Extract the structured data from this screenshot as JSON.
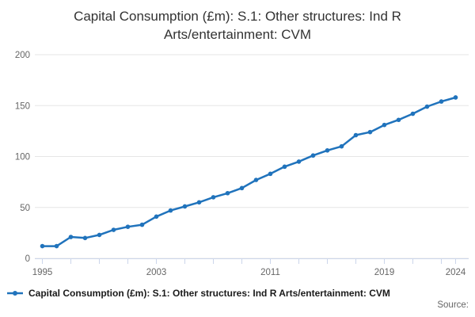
{
  "title": {
    "line1": "Capital Consumption (£m): S.1: Other structures: Ind R",
    "line2": "Arts/entertainment: CVM"
  },
  "legend": {
    "label": "Capital Consumption (£m): S.1: Other structures: Ind R Arts/entertainment: CVM"
  },
  "footer": {
    "source_label": "Source:"
  },
  "colors": {
    "series": "#2073bc",
    "grid": "#e6e6e6",
    "axis": "#ccd6eb",
    "tick_label": "#666666"
  },
  "chart_data": {
    "type": "line",
    "title": "Capital Consumption (£m): S.1: Other structures: Ind R Arts/entertainment: CVM",
    "series_name": "Capital Consumption (£m): S.1: Other structures: Ind R Arts/entertainment: CVM",
    "x": [
      1995,
      1996,
      1997,
      1998,
      1999,
      2000,
      2001,
      2002,
      2003,
      2004,
      2005,
      2006,
      2007,
      2008,
      2009,
      2010,
      2011,
      2012,
      2013,
      2014,
      2015,
      2016,
      2017,
      2018,
      2019,
      2020,
      2021,
      2022,
      2023,
      2024
    ],
    "values": [
      12,
      12,
      21,
      20,
      23,
      28,
      31,
      33,
      41,
      47,
      51,
      55,
      60,
      64,
      69,
      77,
      83,
      90,
      95,
      101,
      106,
      110,
      121,
      124,
      131,
      136,
      142,
      149,
      154,
      158
    ],
    "xlabel": "",
    "ylabel": "",
    "ylim": [
      0,
      200
    ],
    "yticks": [
      0,
      50,
      100,
      150,
      200
    ],
    "xtick_years": [
      1995,
      1997,
      1999,
      2001,
      2003,
      2005,
      2007,
      2009,
      2011,
      2013,
      2015,
      2017,
      2019,
      2021,
      2023,
      2024
    ],
    "xlabel_years": [
      1995,
      2003,
      2011,
      2019,
      2024
    ],
    "grid": "horizontal",
    "legend_position": "bottom-left",
    "marker": "circle"
  }
}
